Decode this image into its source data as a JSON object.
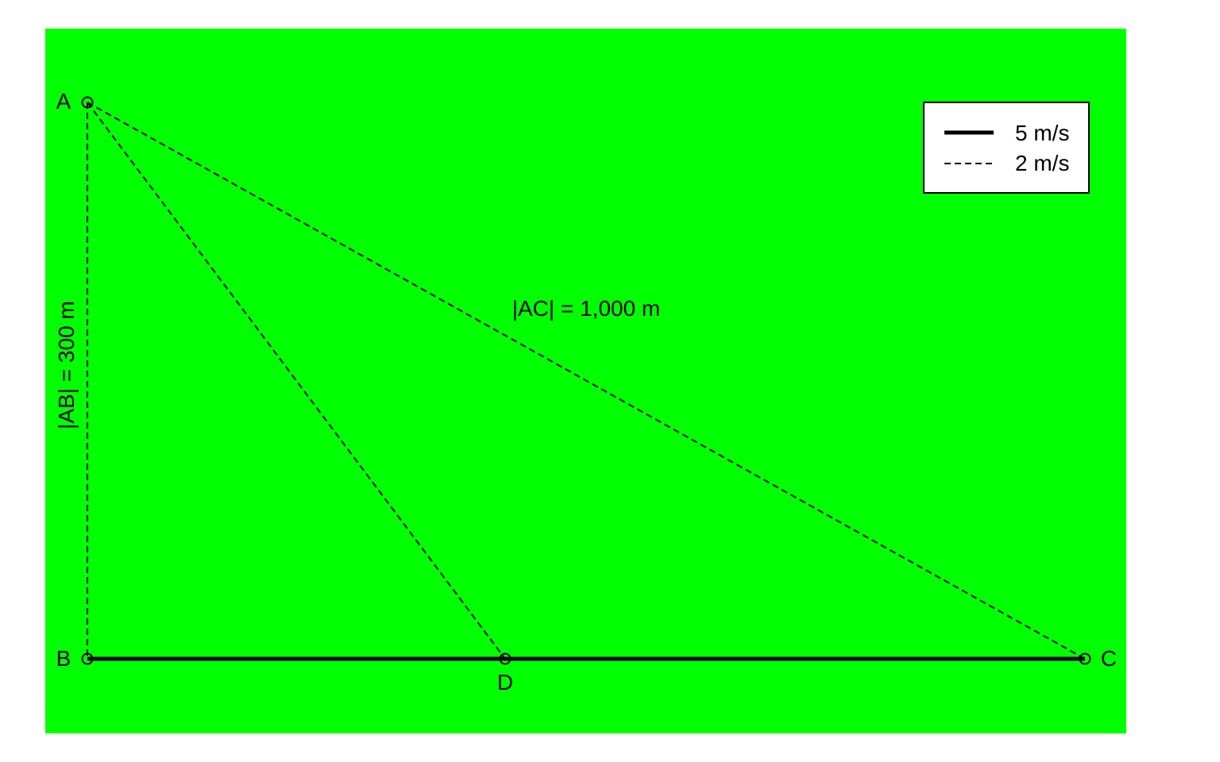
{
  "colors": {
    "background": "#00ff00",
    "ink": "#000000",
    "legend_fill": "#ffffff"
  },
  "points": {
    "A": {
      "label": "A"
    },
    "B": {
      "label": "B"
    },
    "C": {
      "label": "C"
    },
    "D": {
      "label": "D"
    }
  },
  "segments": {
    "AB": {
      "label": "|AB| = 300 m",
      "style": "dashed"
    },
    "AC": {
      "label": "|AC| = 1,000 m",
      "style": "dashed"
    },
    "AD": {
      "style": "dashed"
    },
    "BC": {
      "style": "solid"
    }
  },
  "legend": {
    "entries": [
      {
        "style": "solid",
        "label": "5 m/s"
      },
      {
        "style": "dashed",
        "label": "2 m/s"
      }
    ]
  }
}
